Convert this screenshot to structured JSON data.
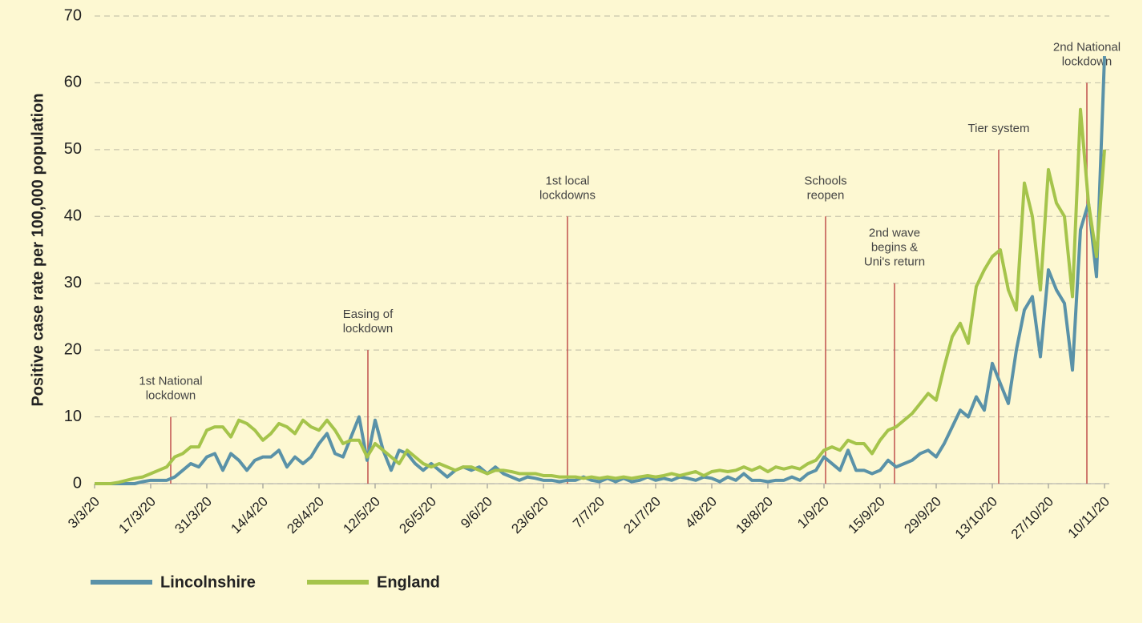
{
  "chart_data": {
    "type": "line",
    "ylabel": "Positive case rate per 100,000 population",
    "ylim": [
      0,
      70
    ],
    "yticks": [
      0,
      10,
      20,
      30,
      40,
      50,
      60,
      70
    ],
    "grid": true,
    "categories": [
      "3/3/20",
      null,
      null,
      null,
      null,
      null,
      null,
      "17/3/20",
      null,
      null,
      null,
      null,
      null,
      null,
      "31/3/20",
      null,
      null,
      null,
      null,
      null,
      null,
      "14/4/20",
      null,
      null,
      null,
      null,
      null,
      null,
      "28/4/20",
      null,
      null,
      null,
      null,
      null,
      null,
      "12/5/20",
      null,
      null,
      null,
      null,
      null,
      null,
      "26/5/20",
      null,
      null,
      null,
      null,
      null,
      null,
      "9/6/20",
      null,
      null,
      null,
      null,
      null,
      null,
      "23/6/20",
      null,
      null,
      null,
      null,
      null,
      null,
      "7/7/20",
      null,
      null,
      null,
      null,
      null,
      null,
      "21/7/20",
      null,
      null,
      null,
      null,
      null,
      null,
      "4/8/20",
      null,
      null,
      null,
      null,
      null,
      null,
      "18/8/20",
      null,
      null,
      null,
      null,
      null,
      null,
      "1/9/20",
      null,
      null,
      null,
      null,
      null,
      null,
      "15/9/20",
      null,
      null,
      null,
      null,
      null,
      null,
      "29/9/20",
      null,
      null,
      null,
      null,
      null,
      null,
      "13/10/20",
      null,
      null,
      null,
      null,
      null,
      null,
      "27/10/20",
      null,
      null,
      null,
      null,
      null,
      null,
      "10/11/20"
    ],
    "series": [
      {
        "name": "Lincolnshire",
        "color": "#5a92a8",
        "values": [
          0,
          0,
          0,
          0,
          0,
          0,
          0.3,
          0.5,
          0.5,
          0.5,
          1,
          2,
          3,
          2.5,
          4,
          4.5,
          2,
          4.5,
          3.5,
          2,
          3.5,
          4,
          4,
          5,
          2.5,
          4,
          3,
          4,
          6,
          7.5,
          4.5,
          4,
          7,
          10,
          3.5,
          9.5,
          5,
          2,
          5,
          4.5,
          3,
          2,
          3,
          2,
          1,
          2,
          2.5,
          2,
          2.5,
          1.5,
          2.5,
          1.5,
          1,
          0.5,
          1,
          0.8,
          0.5,
          0.5,
          0.3,
          0.5,
          0.5,
          1,
          0.5,
          0.3,
          0.8,
          0.3,
          0.8,
          0.3,
          0.5,
          1,
          0.5,
          0.8,
          0.5,
          1,
          0.8,
          0.5,
          1,
          0.8,
          0.3,
          1,
          0.5,
          1.5,
          0.5,
          0.5,
          0.3,
          0.5,
          0.5,
          1,
          0.5,
          1.5,
          2,
          4,
          3,
          2,
          5,
          2,
          2,
          1.5,
          2,
          3.5,
          2.5,
          3,
          3.5,
          4.5,
          5,
          4,
          6,
          8.5,
          11,
          10,
          13,
          11,
          18,
          15,
          12,
          20,
          26,
          28,
          19,
          32,
          29,
          27,
          17,
          38,
          42,
          31,
          64
        ]
      },
      {
        "name": "England",
        "color": "#a5c44b",
        "values": [
          0,
          0,
          0,
          0.2,
          0.5,
          0.8,
          1,
          1.5,
          2,
          2.5,
          4,
          4.5,
          5.5,
          5.5,
          8,
          8.5,
          8.5,
          7,
          9.5,
          9,
          8,
          6.5,
          7.5,
          9,
          8.5,
          7.5,
          9.5,
          8.5,
          8,
          9.5,
          8,
          6,
          6.5,
          6.5,
          4,
          6,
          5,
          4,
          3,
          5,
          4,
          3,
          2.5,
          3,
          2.5,
          2,
          2.5,
          2.5,
          2,
          1.5,
          2,
          2,
          1.8,
          1.5,
          1.5,
          1.5,
          1.2,
          1.2,
          1,
          1,
          1,
          0.8,
          1,
          0.8,
          1,
          0.8,
          1,
          0.8,
          1,
          1.2,
          1,
          1.2,
          1.5,
          1.2,
          1.5,
          1.8,
          1.2,
          1.8,
          2,
          1.8,
          2,
          2.5,
          2,
          2.5,
          1.8,
          2.5,
          2.2,
          2.5,
          2.2,
          3,
          3.5,
          5,
          5.5,
          5,
          6.5,
          6,
          6,
          4.5,
          6.5,
          8,
          8.5,
          9.5,
          10.5,
          12,
          13.5,
          12.5,
          17.5,
          22,
          24,
          21,
          29.5,
          32,
          34,
          35,
          29,
          26,
          45,
          40,
          29,
          47,
          42,
          40,
          28,
          56,
          42,
          34,
          50
        ]
      }
    ],
    "annotations": [
      {
        "lines": [
          "1st National",
          "lockdown"
        ],
        "x": 9.5,
        "y": 10,
        "color": "#c0504d"
      },
      {
        "lines": [
          "Easing of",
          "lockdown"
        ],
        "x": 34.1,
        "y": 20,
        "color": "#c0504d"
      },
      {
        "lines": [
          "1st local",
          "lockdowns"
        ],
        "x": 59,
        "y": 40,
        "color": "#c0504d"
      },
      {
        "lines": [
          "Schools",
          "reopen"
        ],
        "x": 91.2,
        "y": 40,
        "color": "#c0504d"
      },
      {
        "lines": [
          "2nd wave",
          "begins &",
          "Uni's return"
        ],
        "x": 99.8,
        "y": 30,
        "color": "#c0504d"
      },
      {
        "lines": [
          "Tier system"
        ],
        "x": 112.8,
        "y": 50,
        "color": "#c0504d"
      },
      {
        "lines": [
          "2nd National",
          "lockdown"
        ],
        "x": 123.8,
        "y": 60,
        "color": "#c0504d"
      }
    ]
  }
}
